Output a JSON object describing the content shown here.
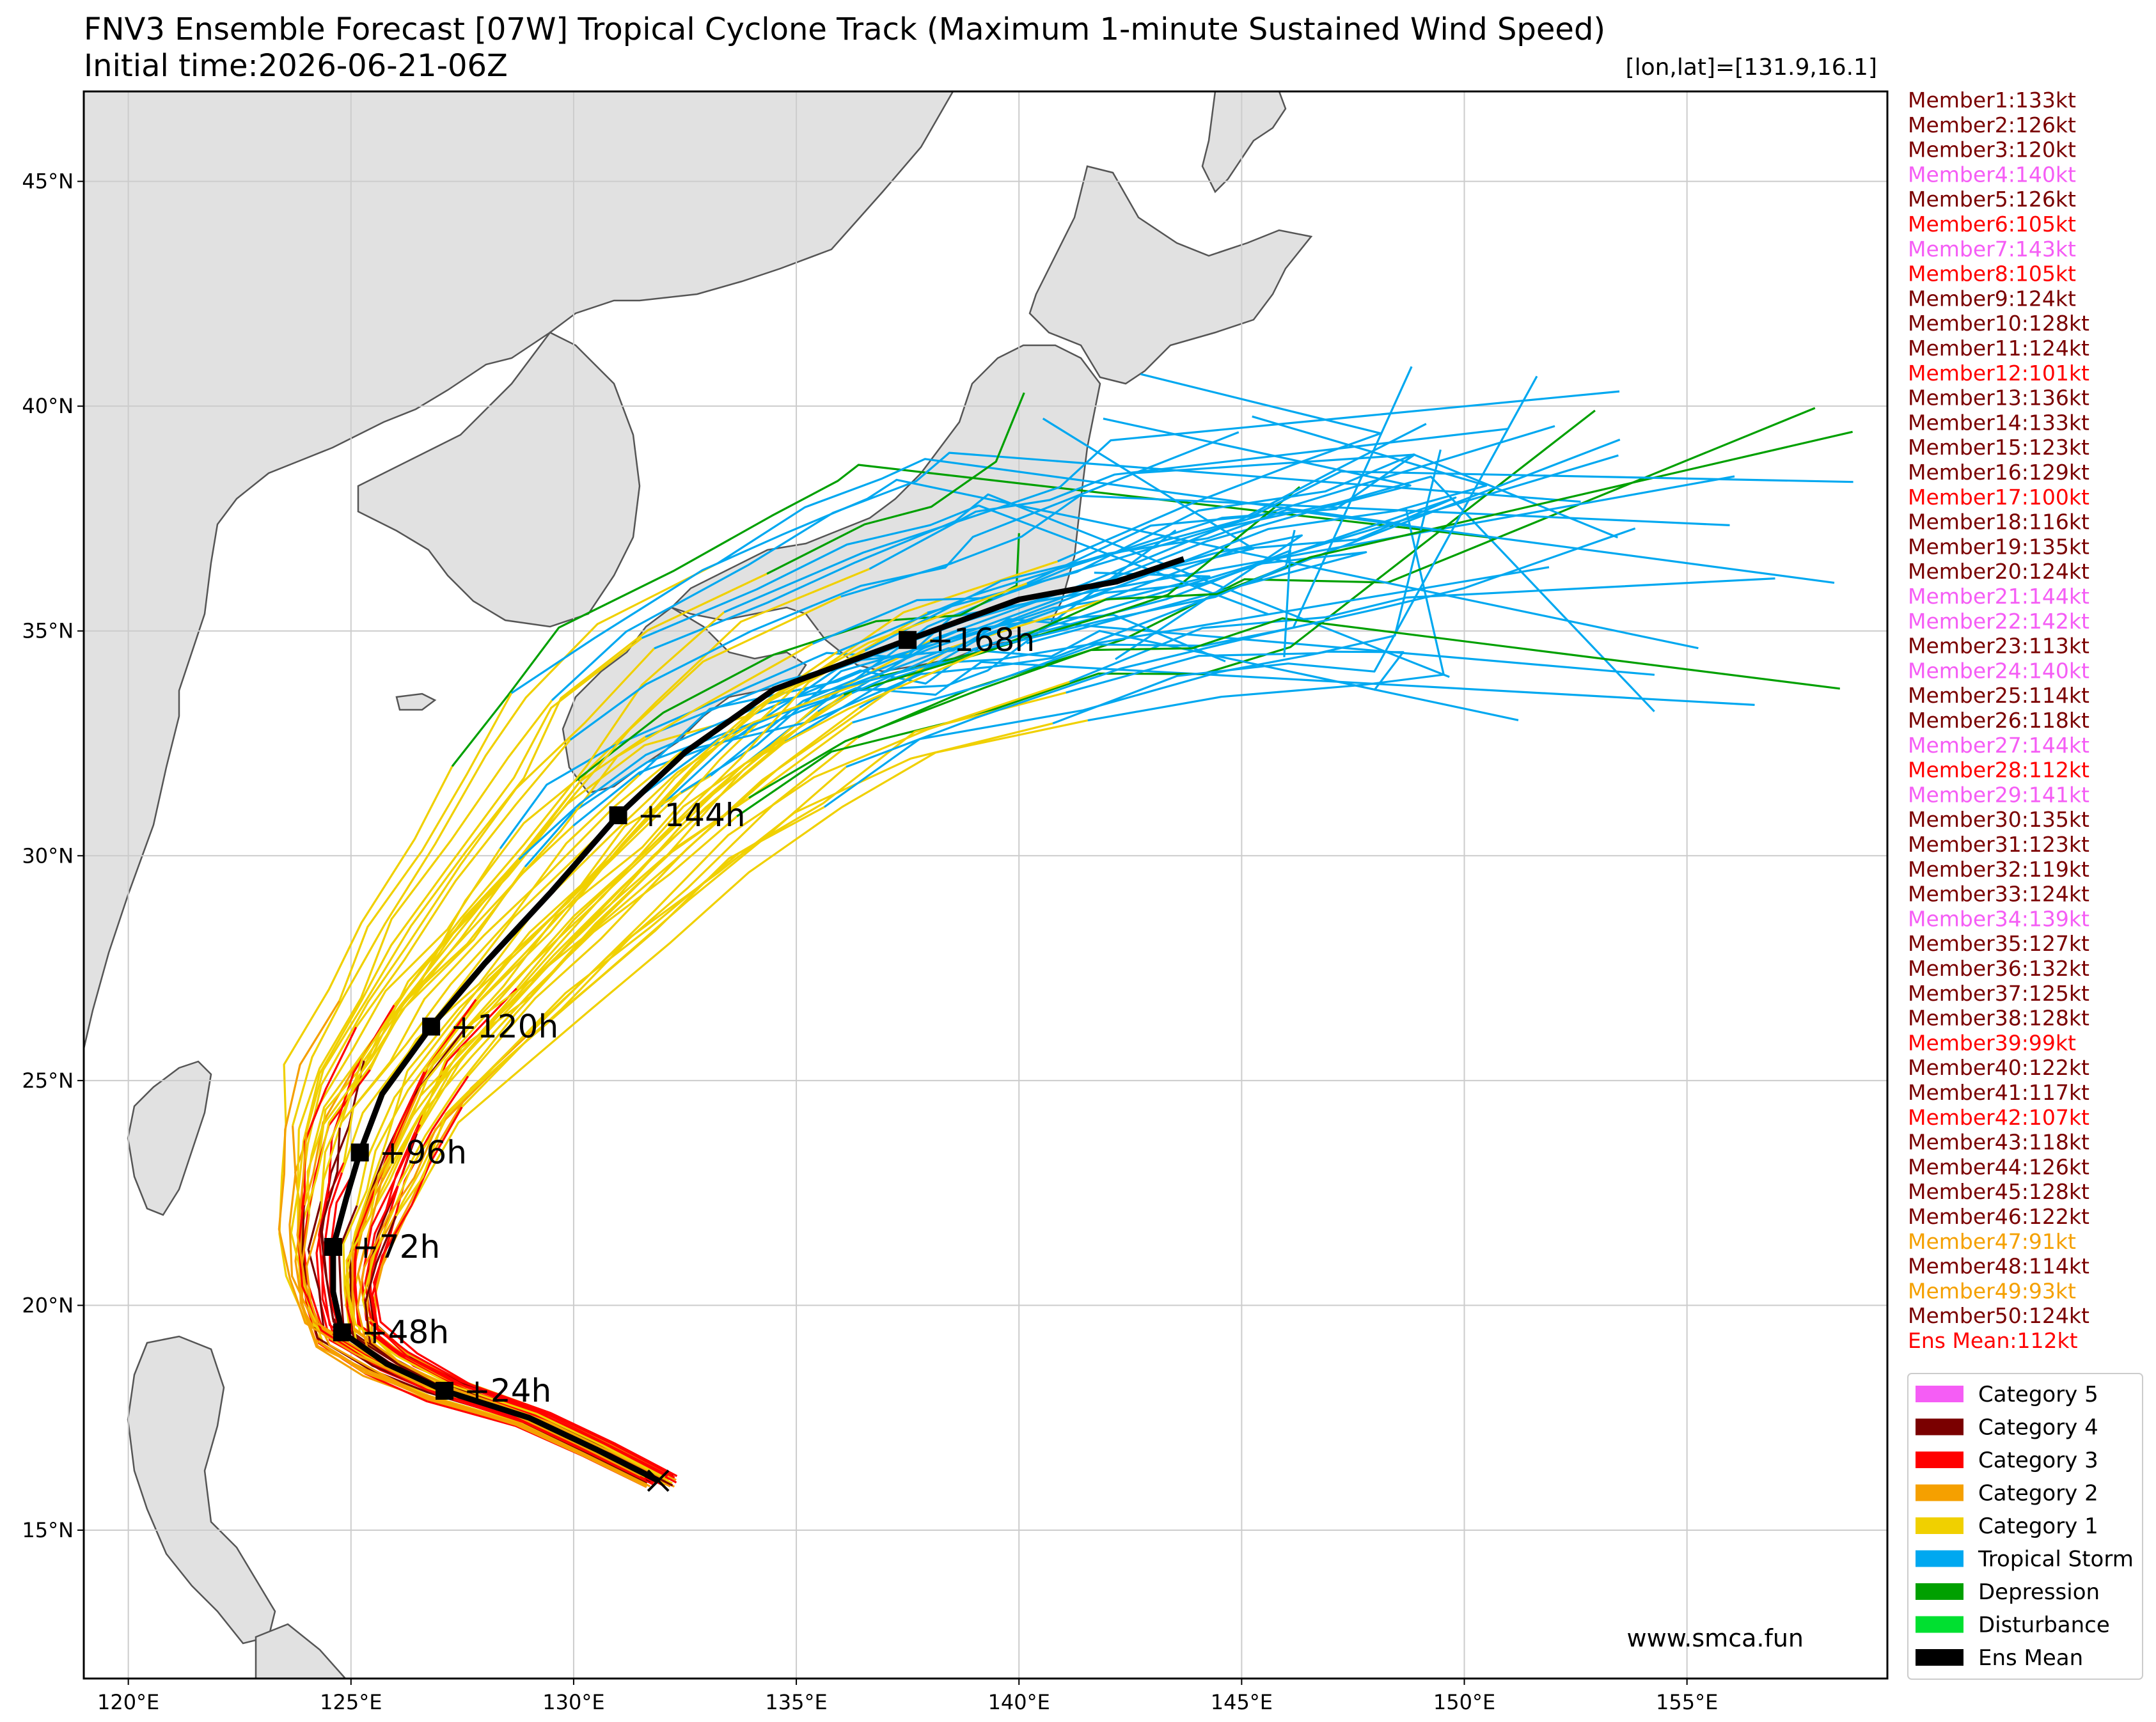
{
  "title": "FNV3 Ensemble Forecast [07W] Tropical Cyclone Track (Maximum 1-minute Sustained Wind Speed)",
  "initial_time": "Initial time:2026-06-21-06Z",
  "coord_label": "[lon,lat]=[131.9,16.1]",
  "credit": "www.smca.fun",
  "colors": {
    "cat5": "#f55df5",
    "cat4": "#7a0000",
    "cat3": "#ff0000",
    "cat2": "#f5a000",
    "cat1": "#f0d000",
    "ts": "#00a8f0",
    "td": "#00a000",
    "dist": "#00e030",
    "mean": "#000000",
    "land": "#e1e1e1",
    "coast": "#555555"
  },
  "axes": {
    "lon_range": [
      119,
      159.5
    ],
    "lat_range": [
      11.7,
      47
    ],
    "lon_ticks": [
      {
        "v": 120,
        "label": "120°E"
      },
      {
        "v": 125,
        "label": "125°E"
      },
      {
        "v": 130,
        "label": "130°E"
      },
      {
        "v": 135,
        "label": "135°E"
      },
      {
        "v": 140,
        "label": "140°E"
      },
      {
        "v": 145,
        "label": "145°E"
      },
      {
        "v": 150,
        "label": "150°E"
      },
      {
        "v": 155,
        "label": "155°E"
      }
    ],
    "lat_ticks": [
      {
        "v": 15,
        "label": "15°N"
      },
      {
        "v": 20,
        "label": "20°N"
      },
      {
        "v": 25,
        "label": "25°N"
      },
      {
        "v": 30,
        "label": "30°N"
      },
      {
        "v": 35,
        "label": "35°N"
      },
      {
        "v": 40,
        "label": "40°N"
      },
      {
        "v": 45,
        "label": "45°N"
      }
    ]
  },
  "members": [
    {
      "label": "Member1:133kt",
      "cat": "cat4"
    },
    {
      "label": "Member2:126kt",
      "cat": "cat4"
    },
    {
      "label": "Member3:120kt",
      "cat": "cat4"
    },
    {
      "label": "Member4:140kt",
      "cat": "cat5"
    },
    {
      "label": "Member5:126kt",
      "cat": "cat4"
    },
    {
      "label": "Member6:105kt",
      "cat": "cat3"
    },
    {
      "label": "Member7:143kt",
      "cat": "cat5"
    },
    {
      "label": "Member8:105kt",
      "cat": "cat3"
    },
    {
      "label": "Member9:124kt",
      "cat": "cat4"
    },
    {
      "label": "Member10:128kt",
      "cat": "cat4"
    },
    {
      "label": "Member11:124kt",
      "cat": "cat4"
    },
    {
      "label": "Member12:101kt",
      "cat": "cat3"
    },
    {
      "label": "Member13:136kt",
      "cat": "cat4"
    },
    {
      "label": "Member14:133kt",
      "cat": "cat4"
    },
    {
      "label": "Member15:123kt",
      "cat": "cat4"
    },
    {
      "label": "Member16:129kt",
      "cat": "cat4"
    },
    {
      "label": "Member17:100kt",
      "cat": "cat3"
    },
    {
      "label": "Member18:116kt",
      "cat": "cat4"
    },
    {
      "label": "Member19:135kt",
      "cat": "cat4"
    },
    {
      "label": "Member20:124kt",
      "cat": "cat4"
    },
    {
      "label": "Member21:144kt",
      "cat": "cat5"
    },
    {
      "label": "Member22:142kt",
      "cat": "cat5"
    },
    {
      "label": "Member23:113kt",
      "cat": "cat4"
    },
    {
      "label": "Member24:140kt",
      "cat": "cat5"
    },
    {
      "label": "Member25:114kt",
      "cat": "cat4"
    },
    {
      "label": "Member26:118kt",
      "cat": "cat4"
    },
    {
      "label": "Member27:144kt",
      "cat": "cat5"
    },
    {
      "label": "Member28:112kt",
      "cat": "cat3"
    },
    {
      "label": "Member29:141kt",
      "cat": "cat5"
    },
    {
      "label": "Member30:135kt",
      "cat": "cat4"
    },
    {
      "label": "Member31:123kt",
      "cat": "cat4"
    },
    {
      "label": "Member32:119kt",
      "cat": "cat4"
    },
    {
      "label": "Member33:124kt",
      "cat": "cat4"
    },
    {
      "label": "Member34:139kt",
      "cat": "cat5"
    },
    {
      "label": "Member35:127kt",
      "cat": "cat4"
    },
    {
      "label": "Member36:132kt",
      "cat": "cat4"
    },
    {
      "label": "Member37:125kt",
      "cat": "cat4"
    },
    {
      "label": "Member38:128kt",
      "cat": "cat4"
    },
    {
      "label": "Member39:99kt",
      "cat": "cat3"
    },
    {
      "label": "Member40:122kt",
      "cat": "cat4"
    },
    {
      "label": "Member41:117kt",
      "cat": "cat4"
    },
    {
      "label": "Member42:107kt",
      "cat": "cat3"
    },
    {
      "label": "Member43:118kt",
      "cat": "cat4"
    },
    {
      "label": "Member44:126kt",
      "cat": "cat4"
    },
    {
      "label": "Member45:128kt",
      "cat": "cat4"
    },
    {
      "label": "Member46:122kt",
      "cat": "cat4"
    },
    {
      "label": "Member47:91kt",
      "cat": "cat2"
    },
    {
      "label": "Member48:114kt",
      "cat": "cat4"
    },
    {
      "label": "Member49:93kt",
      "cat": "cat2"
    },
    {
      "label": "Member50:124kt",
      "cat": "cat4"
    },
    {
      "label": "Ens Mean:112kt",
      "cat": "cat3"
    }
  ],
  "legend": [
    {
      "label": "Category 5",
      "color": "cat5"
    },
    {
      "label": "Category 4",
      "color": "cat4"
    },
    {
      "label": "Category 3",
      "color": "cat3"
    },
    {
      "label": "Category 2",
      "color": "cat2"
    },
    {
      "label": "Category 1",
      "color": "cat1"
    },
    {
      "label": "Tropical Storm",
      "color": "ts"
    },
    {
      "label": "Depression",
      "color": "td"
    },
    {
      "label": "Disturbance",
      "color": "dist"
    },
    {
      "label": "Ens Mean",
      "color": "mean"
    }
  ],
  "ens_mean_track": [
    [
      131.9,
      16.1
    ],
    [
      130.5,
      16.8
    ],
    [
      129,
      17.5
    ],
    [
      127.1,
      18.1
    ],
    [
      125.8,
      18.7
    ],
    [
      124.8,
      19.4
    ],
    [
      124.6,
      20.3
    ],
    [
      124.6,
      21.3
    ],
    [
      124.9,
      22.4
    ],
    [
      125.2,
      23.4
    ],
    [
      125.7,
      24.7
    ],
    [
      126.8,
      26.2
    ],
    [
      128,
      27.6
    ],
    [
      129.5,
      29.2
    ],
    [
      131,
      30.9
    ],
    [
      132.5,
      32.3
    ],
    [
      134.5,
      33.7
    ],
    [
      137.5,
      34.8
    ],
    [
      140,
      35.7
    ],
    [
      142.2,
      36.1
    ],
    [
      143.7,
      36.6
    ]
  ],
  "time_markers": [
    {
      "label": "+24h",
      "lon": 127.1,
      "lat": 18.1
    },
    {
      "label": "+48h",
      "lon": 124.8,
      "lat": 19.4
    },
    {
      "label": "+72h",
      "lon": 124.6,
      "lat": 21.3
    },
    {
      "label": "+96h",
      "lon": 125.2,
      "lat": 23.4
    },
    {
      "label": "+120h",
      "lon": 126.8,
      "lat": 26.2
    },
    {
      "label": "+144h",
      "lon": 131.0,
      "lat": 30.9
    },
    {
      "label": "+168h",
      "lon": 137.5,
      "lat": 34.8
    }
  ],
  "start_point": {
    "lon": 131.9,
    "lat": 16.1
  }
}
